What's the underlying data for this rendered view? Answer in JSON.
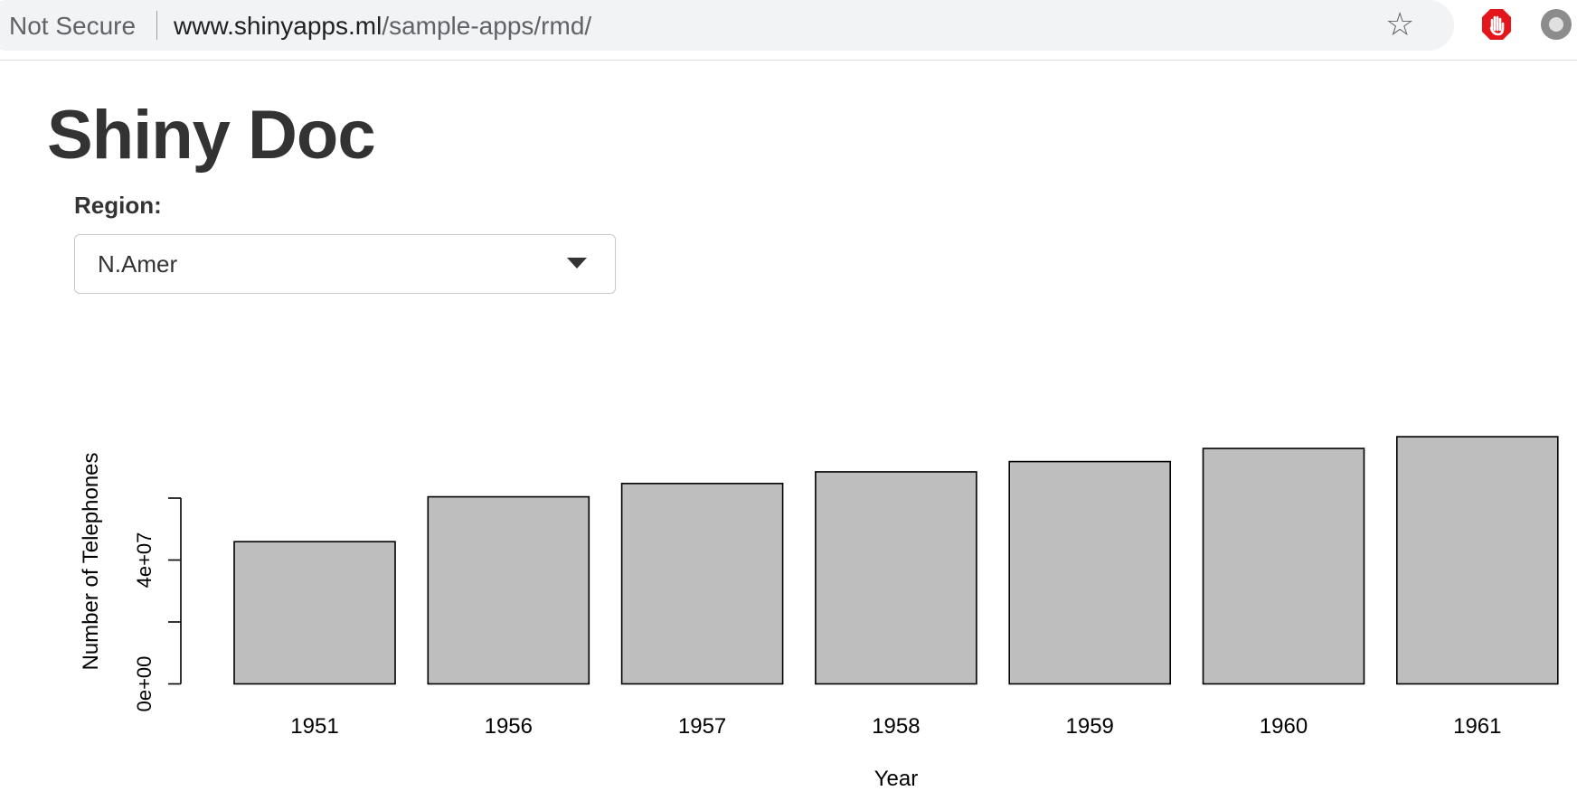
{
  "browser": {
    "security_label": "Not Secure",
    "url_host": "www.shinyapps.ml",
    "url_path": "/sample-apps/rmd/",
    "icons": [
      "site-info-icon",
      "star-icon",
      "adblock-icon",
      "extension-icon"
    ]
  },
  "page": {
    "title": "Shiny Doc",
    "region_label": "Region:",
    "region_value": "N.Amer"
  },
  "chart_data": {
    "type": "bar",
    "categories": [
      "1951",
      "1956",
      "1957",
      "1958",
      "1959",
      "1960",
      "1961"
    ],
    "values": [
      45939000,
      60423000,
      64721000,
      68484000,
      71799000,
      76036000,
      79831000
    ],
    "y_ticks": [
      0,
      20000000,
      40000000,
      60000000
    ],
    "y_tick_labels": [
      "0e+00",
      "",
      "4e+07",
      ""
    ],
    "ylim": [
      0,
      80000000
    ],
    "xlabel": "Year",
    "ylabel": "Number of Telephones",
    "bar_fill": "#bebebe",
    "bar_stroke": "#000000",
    "grid": false
  }
}
